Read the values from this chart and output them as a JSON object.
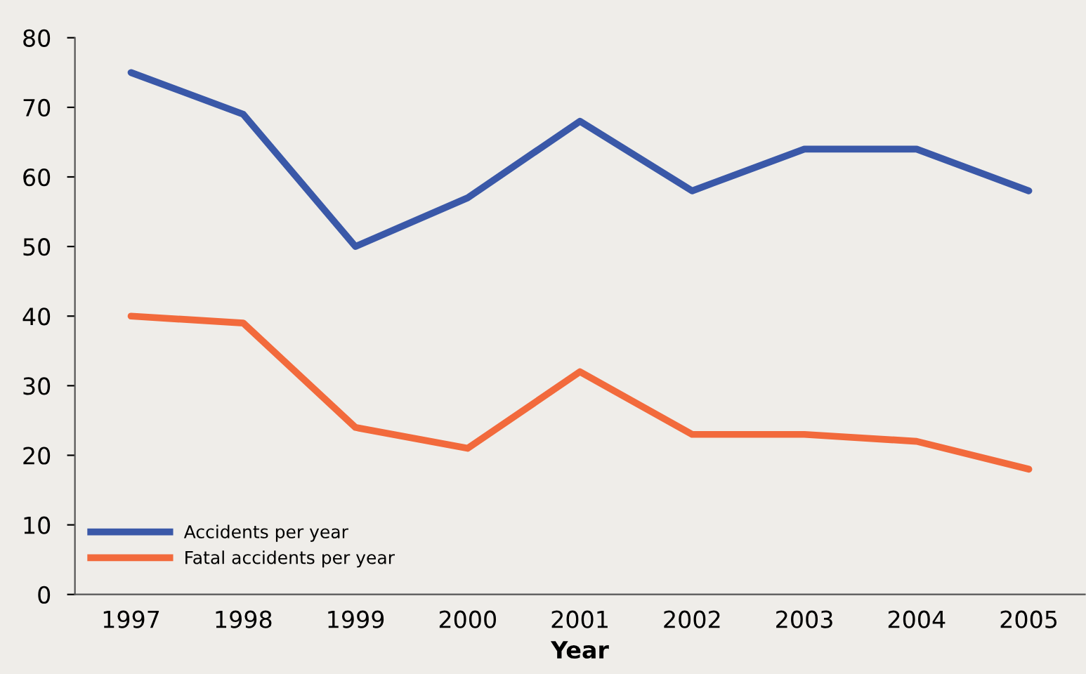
{
  "chart_data": {
    "type": "line",
    "xlabel": "Year",
    "categories": [
      "1997",
      "1998",
      "1999",
      "2000",
      "2001",
      "2002",
      "2003",
      "2004",
      "2005"
    ],
    "series": [
      {
        "name": "Accidents per year",
        "color": "#3a58a8",
        "values": [
          75,
          69,
          50,
          57,
          68,
          58,
          64,
          64,
          58
        ]
      },
      {
        "name": "Fatal accidents per year",
        "color": "#f26a3c",
        "values": [
          40,
          39,
          24,
          21,
          32,
          23,
          23,
          22,
          18
        ]
      }
    ],
    "ylim": [
      0,
      80
    ],
    "yticks": [
      0,
      10,
      20,
      30,
      40,
      50,
      60,
      70,
      80
    ],
    "grid": false,
    "legend": "bottom left",
    "marker": "none",
    "line_style": "solid"
  }
}
